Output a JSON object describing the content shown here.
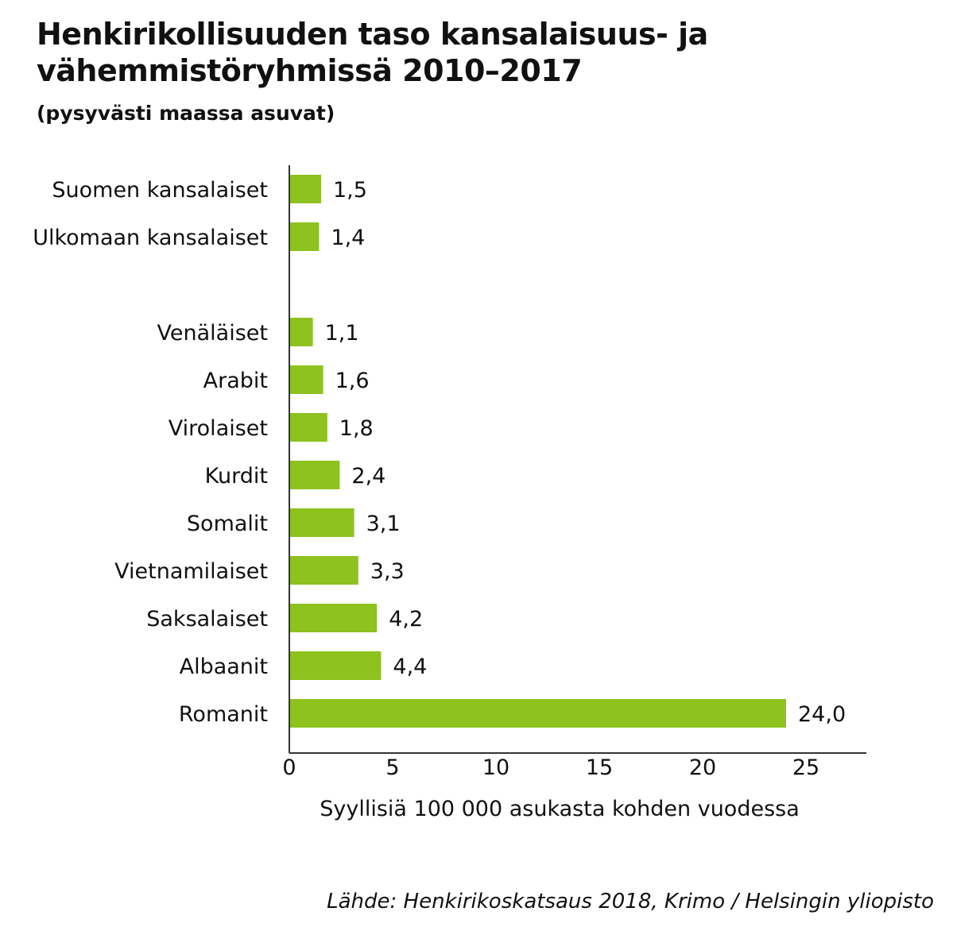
{
  "chart_data": {
    "type": "bar",
    "orientation": "horizontal",
    "title": "Henkirikollisuuden taso kansalaisuus- ja vähemmistöryhmissä 2010–2017",
    "subtitle": "(pysyvästi maassa asuvat)",
    "xlabel": "Syyllisiä 100 000 asukasta kohden vuodessa",
    "ylabel": "",
    "xlim": [
      0,
      28
    ],
    "xticks": [
      0,
      5,
      10,
      15,
      20,
      25
    ],
    "grid": false,
    "categories": [
      "Suomen kansalaiset",
      "Ulkomaan kansalaiset",
      "Venäläiset",
      "Arabit",
      "Virolaiset",
      "Kurdit",
      "Somalit",
      "Vietnamilaiset",
      "Saksalaiset",
      "Albaanit",
      "Romanit"
    ],
    "values": [
      1.5,
      1.4,
      1.1,
      1.6,
      1.8,
      2.4,
      3.1,
      3.3,
      4.2,
      4.4,
      24.0
    ],
    "value_labels": [
      "1,5",
      "1,4",
      "1,1",
      "1,6",
      "1,8",
      "2,4",
      "3,1",
      "3,3",
      "4,2",
      "4,4",
      "24,0"
    ],
    "groups": [
      [
        0,
        1
      ],
      [
        2,
        3,
        4,
        5,
        6,
        7,
        8,
        9,
        10
      ]
    ],
    "bar_color": "#8dc21f",
    "source": "Lähde: Henkirikoskatsaus 2018, Krimo / Helsingin yliopisto"
  }
}
